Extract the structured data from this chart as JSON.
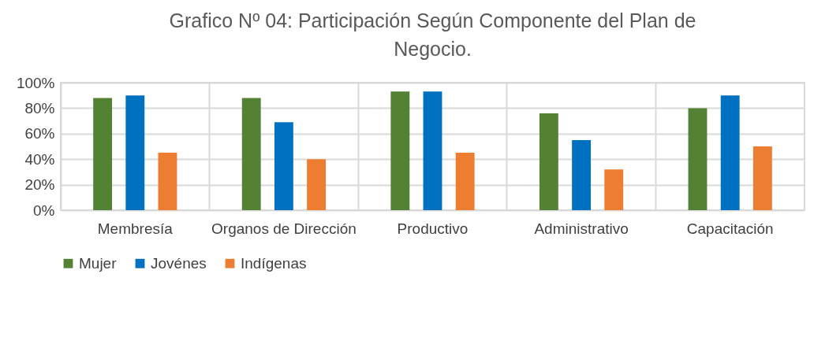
{
  "chart_data": {
    "type": "bar",
    "title": "Grafico Nº 04: Participación Según Componente del Plan de Negocio.",
    "categories": [
      "Membresía",
      "Organos de Dirección",
      "Productivo",
      "Administrativo",
      "Capacitación"
    ],
    "series": [
      {
        "name": "Mujer",
        "color": "#548235",
        "values": [
          88,
          88,
          93,
          76,
          80
        ]
      },
      {
        "name": "Jovénes",
        "color": "#0070c0",
        "values": [
          90,
          69,
          93,
          55,
          90
        ]
      },
      {
        "name": "Indígenas",
        "color": "#ed7d31",
        "values": [
          45,
          40,
          45,
          32,
          50
        ]
      }
    ],
    "ylim": [
      0,
      100
    ],
    "yticks": [
      {
        "value": 0,
        "label": "0%"
      },
      {
        "value": 20,
        "label": "20%"
      },
      {
        "value": 40,
        "label": "40%"
      },
      {
        "value": 60,
        "label": "60%"
      },
      {
        "value": 80,
        "label": "80%"
      },
      {
        "value": 100,
        "label": "100%"
      }
    ],
    "grid": true,
    "legend": "bottom"
  }
}
